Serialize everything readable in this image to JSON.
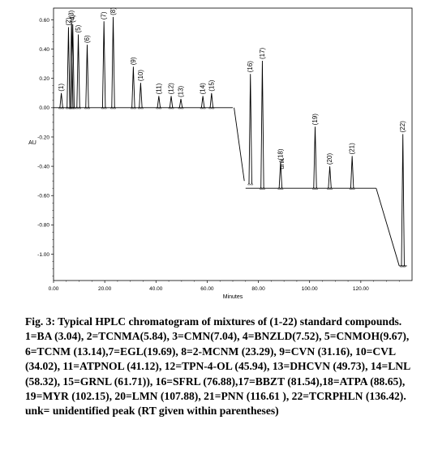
{
  "chart_data": {
    "type": "line",
    "ylabel": "AU",
    "xlabel": "Minutes",
    "xlim": [
      0,
      140
    ],
    "ylim": [
      -1.18,
      0.68
    ],
    "xticks": [
      0,
      20,
      40,
      60,
      80,
      100,
      120
    ],
    "xtick_labels": [
      "0.00",
      "20.00",
      "40.00",
      "60.00",
      "80.00",
      "100.00",
      "120.00"
    ],
    "yticks": [
      0.6,
      0.4,
      0.2,
      0.0,
      -0.2,
      -0.4,
      -0.6,
      -0.8,
      -1.0
    ],
    "ytick_labels": [
      "0.60",
      "0.40",
      "0.20",
      "0.00",
      "-0.20",
      "-0.40",
      "-0.60",
      "-0.80",
      "-1.00"
    ],
    "grid": false,
    "baseline_segments": [
      {
        "x": [
          0,
          70
        ],
        "y": [
          0.0,
          0.0
        ]
      },
      {
        "x": [
          70.5,
          74.5
        ],
        "y": [
          0.0,
          -0.5
        ]
      },
      {
        "x": [
          75,
          126
        ],
        "y": [
          -0.55,
          -0.55
        ]
      },
      {
        "x": [
          126,
          135
        ],
        "y": [
          -0.55,
          -1.08
        ]
      },
      {
        "x": [
          135,
          138
        ],
        "y": [
          -1.08,
          -1.08
        ]
      }
    ],
    "peaks": [
      {
        "label": "(1)",
        "x": 3.04,
        "base": 0.0,
        "height": 0.1
      },
      {
        "label": "(2)",
        "x": 5.84,
        "base": 0.0,
        "height": 0.55
      },
      {
        "label": "(3)",
        "x": 7.04,
        "base": 0.0,
        "height": 0.6
      },
      {
        "label": "(4)",
        "x": 7.52,
        "base": 0.0,
        "height": 0.57
      },
      {
        "label": "(5)",
        "x": 9.67,
        "base": 0.0,
        "height": 0.5
      },
      {
        "label": "(6)",
        "x": 13.14,
        "base": 0.0,
        "height": 0.43
      },
      {
        "label": "(7)",
        "x": 19.69,
        "base": 0.0,
        "height": 0.59
      },
      {
        "label": "(8)",
        "x": 23.29,
        "base": 0.0,
        "height": 0.62
      },
      {
        "label": "(9)",
        "x": 31.16,
        "base": 0.0,
        "height": 0.28
      },
      {
        "label": "(10)",
        "x": 34.02,
        "base": 0.0,
        "height": 0.17
      },
      {
        "label": "(11)",
        "x": 41.12,
        "base": 0.0,
        "height": 0.08
      },
      {
        "label": "(12)",
        "x": 45.94,
        "base": 0.0,
        "height": 0.08
      },
      {
        "label": "(13)",
        "x": 49.73,
        "base": 0.0,
        "height": 0.06
      },
      {
        "label": "(14)",
        "x": 58.32,
        "base": 0.0,
        "height": 0.08
      },
      {
        "label": "(15)",
        "x": 61.71,
        "base": 0.0,
        "height": 0.1
      },
      {
        "label": "(16)",
        "x": 76.88,
        "base": -0.52,
        "height": 0.75
      },
      {
        "label": "(17)",
        "x": 81.54,
        "base": -0.55,
        "height": 0.87
      },
      {
        "label": "(18)",
        "x": 88.65,
        "base": -0.55,
        "height": 0.18
      },
      {
        "label": "(19)",
        "x": 102.15,
        "base": -0.55,
        "height": 0.42
      },
      {
        "label": "(20)",
        "x": 107.88,
        "base": -0.55,
        "height": 0.15
      },
      {
        "label": "(21)",
        "x": 116.61,
        "base": -0.55,
        "height": 0.22
      },
      {
        "label": "(22)",
        "x": 136.42,
        "base": -1.08,
        "height": 0.9
      }
    ],
    "unk_label": "unk",
    "unk_x": 89.2
  },
  "caption": {
    "title": "Fig. 3: Typical HPLC chromatogram of mixtures of (1-22) standard compounds.",
    "legend": "1=BA (3.04), 2=TCNMA(5.84), 3=CMN(7.04), 4=BNZLD(7.52), 5=CNMOH(9.67), 6=TCNM (13.14),7=EGL(19.69), 8=2-MCNM (23.29), 9=CVN (31.16), 10=CVL (34.02), 11=ATPNOL (41.12), 12=TPN-4-OL (45.94), 13=DHCVN (49.73), 14=LNL (58.32), 15=GRNL (61.71)), 16=SFRL (76.88),17=BBZT (81.54),18=ATPA (88.65), 19=MYR (102.15), 20=LMN (107.88), 21=PNN (116.61 ), 22=TCRPHLN (136.42).",
    "note": "unk= unidentified peak (RT given within parentheses)"
  }
}
